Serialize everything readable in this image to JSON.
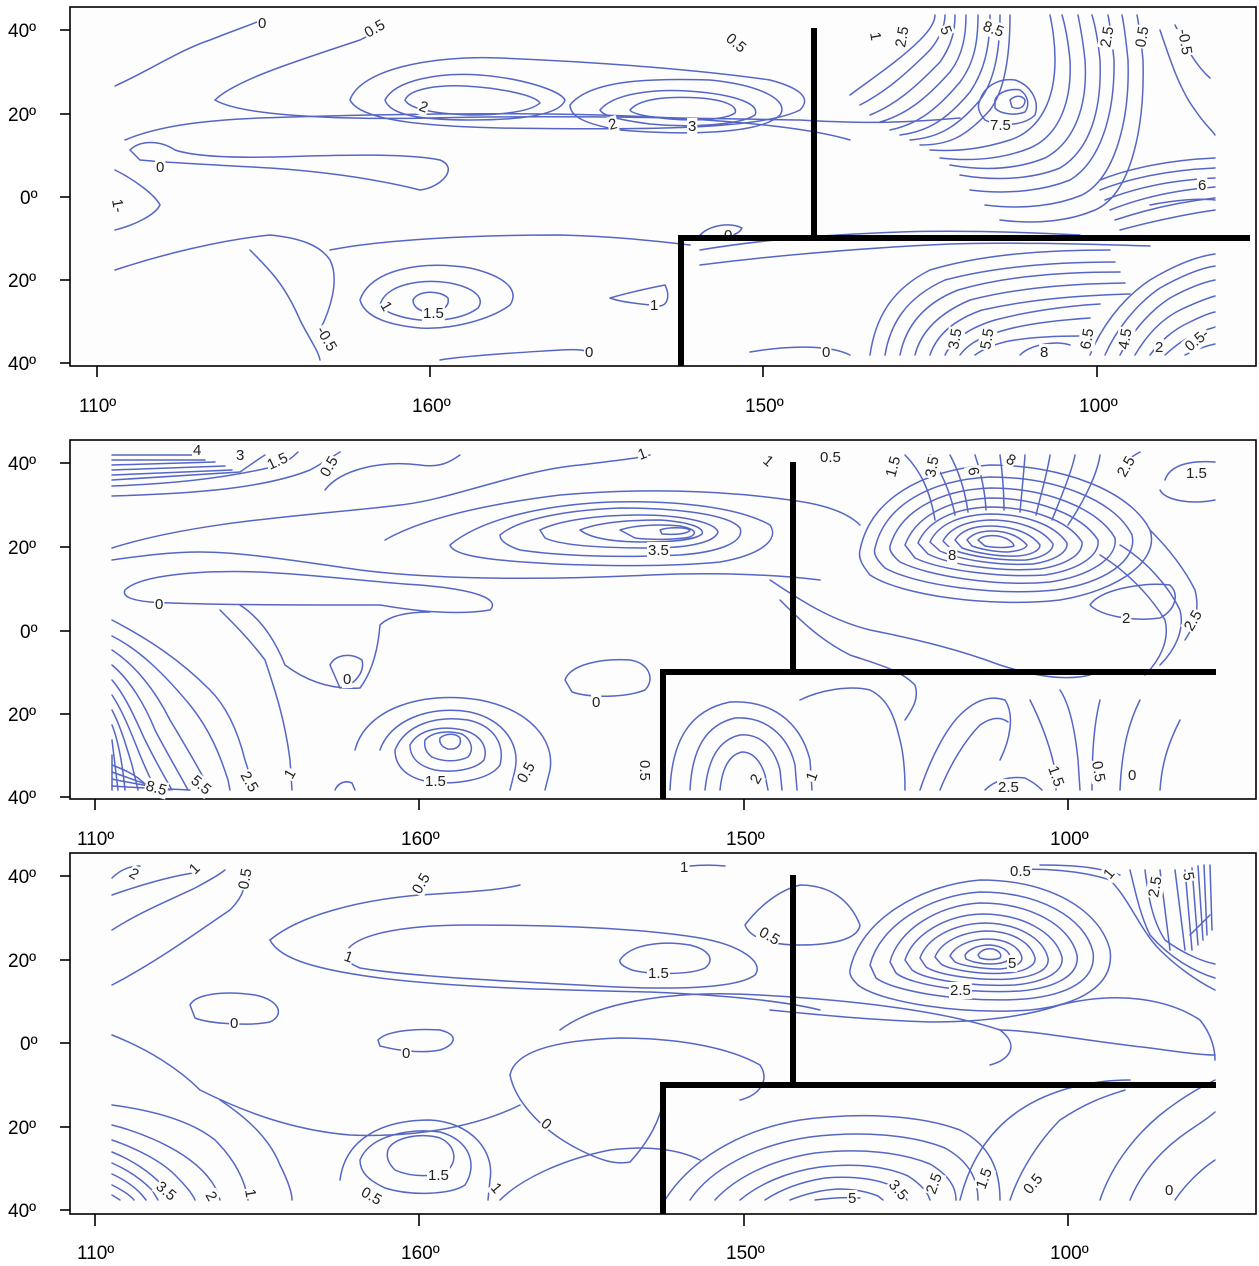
{
  "panels": [
    {
      "id": "top",
      "y_ticks": [
        "40º",
        "20º",
        "0º",
        "20º",
        "40º"
      ],
      "x_ticks": [
        "110º",
        "160º",
        "150º",
        "100º"
      ],
      "contour_labels": [
        "0",
        "0.5",
        "0.5",
        "1",
        "2.5",
        "5",
        "8.5",
        "2.5",
        "0.5",
        "-0.5",
        "2",
        "2",
        "3",
        "7.5",
        "0",
        "6",
        "1-",
        "0",
        "1",
        "1.5",
        "1",
        "-0.5",
        "0",
        "0",
        "3.5",
        "5.5",
        "8",
        "6.5",
        "4.5",
        "2",
        "0.5-"
      ]
    },
    {
      "id": "middle",
      "y_ticks": [
        "40º",
        "20º",
        "0º",
        "20º",
        "40º"
      ],
      "x_ticks": [
        "110º",
        "160º",
        "150º",
        "100º"
      ],
      "contour_labels": [
        "4",
        "3",
        "1.5",
        "0.5",
        "1",
        "1",
        "0.5",
        "1.5",
        "3.5",
        "6",
        "8",
        "2.5",
        "1.5",
        "3.5",
        "8",
        "0",
        "2",
        "2.5",
        "0",
        "0",
        "1.5",
        "0.5",
        "0.5",
        "2",
        "1",
        "8.5",
        "5.5",
        "2.5",
        "1",
        "2.5",
        "1.5",
        "0.5",
        "0"
      ]
    },
    {
      "id": "bottom",
      "y_ticks": [
        "40º",
        "20º",
        "0º",
        "20º",
        "40º"
      ],
      "x_ticks": [
        "110º",
        "160º",
        "150º",
        "100º"
      ],
      "contour_labels": [
        "2",
        "1",
        "0.5",
        "0.5",
        "1",
        "0.5",
        "1",
        "1.5",
        "0.5",
        "1",
        "2.5",
        "5",
        "5",
        "2.5",
        "0",
        "0",
        "0",
        "3.5",
        "2",
        "1",
        "0.5",
        "1.5",
        "1",
        "5",
        "3.5",
        "2.5",
        "1.5",
        "0.5",
        "0"
      ]
    }
  ],
  "colors": {
    "contour": "#5566c4",
    "boundary": "#000000"
  }
}
